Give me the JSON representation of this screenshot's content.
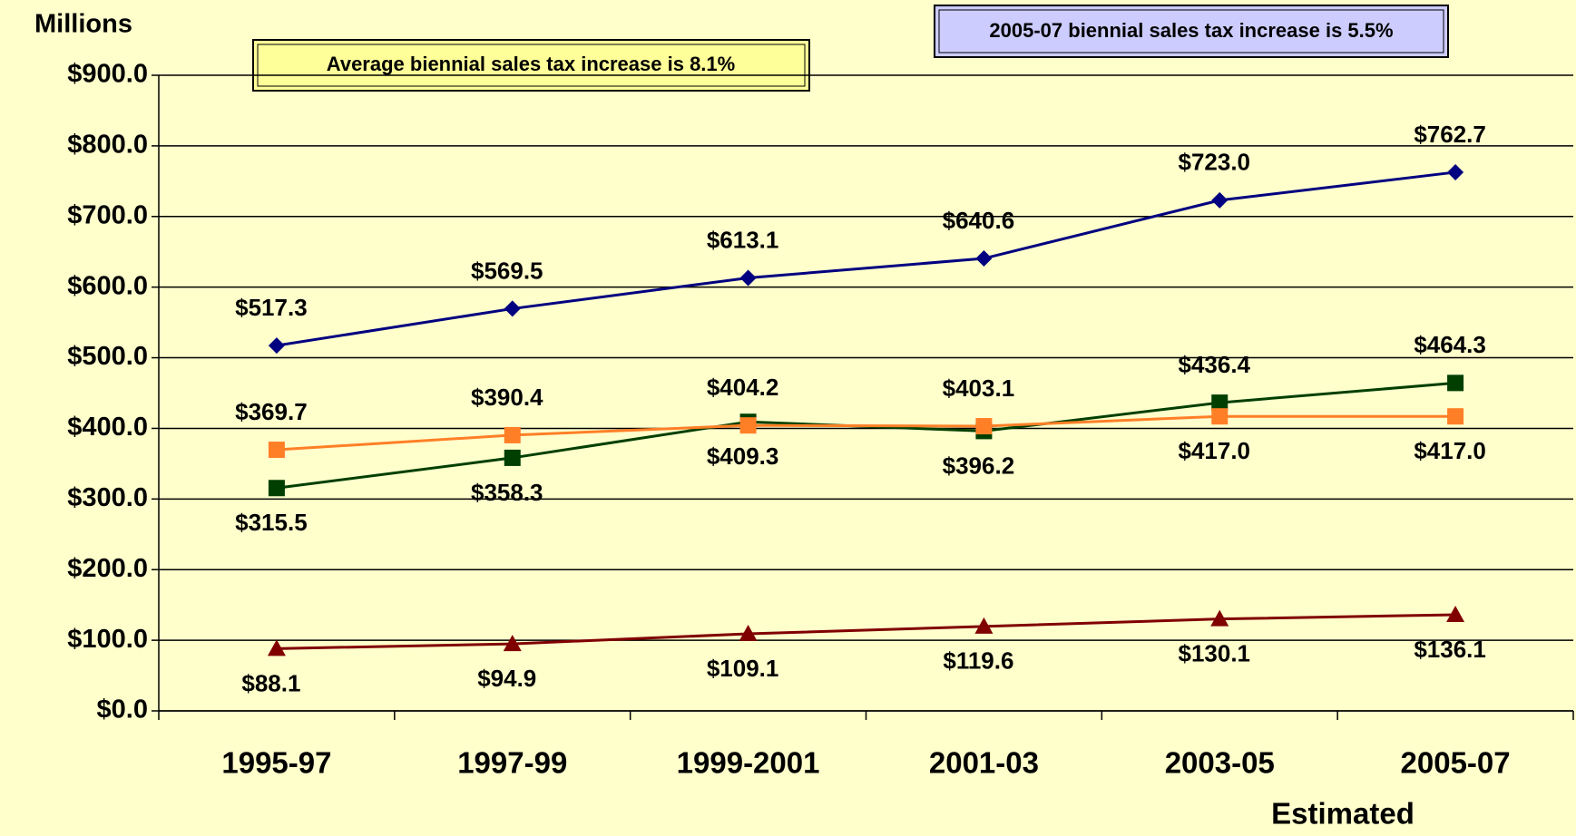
{
  "chart_data": {
    "type": "line",
    "y_axis_label": "Millions",
    "x_axis_note": "Estimated",
    "annotations": [
      "Average biennial sales tax increase is 8.1%",
      "2005-07 biennial sales tax increase is 5.5%"
    ],
    "categories": [
      "1995-97",
      "1997-99",
      "1999-2001",
      "2001-03",
      "2003-05",
      "2005-07"
    ],
    "series": [
      {
        "color": "#000080",
        "marker": "diamond",
        "values": [
          517.3,
          569.5,
          613.1,
          640.6,
          723.0,
          762.7
        ],
        "value_labels": [
          "$517.3",
          "$569.5",
          "$613.1",
          "$640.6",
          "$723.0",
          "$762.7"
        ]
      },
      {
        "color": "#003f00",
        "marker": "square",
        "values": [
          315.5,
          358.3,
          409.3,
          396.2,
          436.4,
          464.3
        ],
        "value_labels": [
          "$315.5",
          "$358.3",
          "$409.3",
          "$396.2",
          "$436.4",
          "$464.3"
        ]
      },
      {
        "color": "#ff7f27",
        "marker": "square",
        "values": [
          369.7,
          390.4,
          404.2,
          403.1,
          417.0,
          417.0
        ],
        "value_labels": [
          "$369.7",
          "$390.4",
          "$404.2",
          "$403.1",
          "$417.0",
          "$417.0"
        ]
      },
      {
        "color": "#800000",
        "marker": "triangle",
        "values": [
          88.1,
          94.9,
          109.1,
          119.6,
          130.1,
          136.1
        ],
        "value_labels": [
          "$88.1",
          "$94.9",
          "$109.1",
          "$119.6",
          "$130.1",
          "$136.1"
        ]
      }
    ],
    "ylim": [
      0,
      900
    ],
    "yticks": [
      {
        "value": 0,
        "label": "$0.0"
      },
      {
        "value": 100,
        "label": "$100.0"
      },
      {
        "value": 200,
        "label": "$200.0"
      },
      {
        "value": 300,
        "label": "$300.0"
      },
      {
        "value": 400,
        "label": "$400.0"
      },
      {
        "value": 500,
        "label": "$500.0"
      },
      {
        "value": 600,
        "label": "$600.0"
      },
      {
        "value": 700,
        "label": "$700.0"
      },
      {
        "value": 800,
        "label": "$800.0"
      },
      {
        "value": 900,
        "label": "$900.0"
      }
    ],
    "grid": true
  }
}
